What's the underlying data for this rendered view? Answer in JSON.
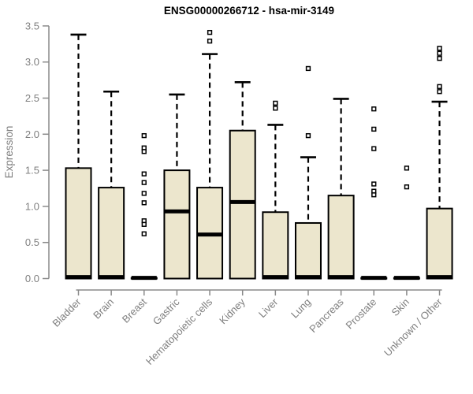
{
  "chart_data": {
    "type": "boxplot",
    "title": "ENSG00000266712 - hsa-mir-3149",
    "xlabel": "",
    "ylabel": "Expression",
    "ylim": [
      0.0,
      3.5
    ],
    "ytick_labels": [
      "0.0",
      "0.5",
      "1.0",
      "1.5",
      "2.0",
      "2.5",
      "3.0",
      "3.5"
    ],
    "grid": false,
    "legend": "none",
    "categories": [
      "Bladder",
      "Brain",
      "Breast",
      "Gastric",
      "Hematopoietic cells",
      "Kidney",
      "Liver",
      "Lung",
      "Pancreas",
      "Prostate",
      "Skin",
      "Unknown / Other"
    ],
    "boxes": [
      {
        "category": "Bladder",
        "q1": 0,
        "median": 0.02,
        "q3": 1.53,
        "whisker_low": 0,
        "whisker_high": 3.38,
        "outliers": []
      },
      {
        "category": "Brain",
        "q1": 0,
        "median": 0.02,
        "q3": 1.26,
        "whisker_low": 0,
        "whisker_high": 2.59,
        "outliers": []
      },
      {
        "category": "Breast",
        "q1": 0,
        "median": 0.01,
        "q3": 0.01,
        "whisker_low": 0,
        "whisker_high": 0.01,
        "outliers": [
          1.98,
          1.81,
          1.76,
          1.45,
          1.33,
          1.18,
          1.05,
          0.8,
          0.75,
          0.62
        ]
      },
      {
        "category": "Gastric",
        "q1": 0,
        "median": 0.93,
        "q3": 1.5,
        "whisker_low": 0,
        "whisker_high": 2.55,
        "outliers": []
      },
      {
        "category": "Hematopoietic cells",
        "q1": 0,
        "median": 0.61,
        "q3": 1.26,
        "whisker_low": 0,
        "whisker_high": 3.11,
        "outliers": [
          3.41,
          3.29
        ]
      },
      {
        "category": "Kidney",
        "q1": 0,
        "median": 1.06,
        "q3": 2.05,
        "whisker_low": 0,
        "whisker_high": 2.72,
        "outliers": []
      },
      {
        "category": "Liver",
        "q1": 0,
        "median": 0.02,
        "q3": 0.92,
        "whisker_low": 0,
        "whisker_high": 2.13,
        "outliers": [
          2.43,
          2.36
        ]
      },
      {
        "category": "Lung",
        "q1": 0,
        "median": 0.02,
        "q3": 0.77,
        "whisker_low": 0,
        "whisker_high": 1.68,
        "outliers": [
          2.91,
          1.98
        ]
      },
      {
        "category": "Pancreas",
        "q1": 0,
        "median": 0.02,
        "q3": 1.15,
        "whisker_low": 0,
        "whisker_high": 2.49,
        "outliers": []
      },
      {
        "category": "Prostate",
        "q1": 0,
        "median": 0.01,
        "q3": 0.01,
        "whisker_low": 0,
        "whisker_high": 0.01,
        "outliers": [
          2.35,
          2.07,
          1.8,
          1.31,
          1.21,
          1.16
        ]
      },
      {
        "category": "Skin",
        "q1": 0,
        "median": 0.01,
        "q3": 0.01,
        "whisker_low": 0,
        "whisker_high": 0.01,
        "outliers": [
          1.53,
          1.27
        ]
      },
      {
        "category": "Unknown / Other",
        "q1": 0,
        "median": 0.02,
        "q3": 0.97,
        "whisker_low": 0,
        "whisker_high": 2.45,
        "outliers": [
          3.19,
          3.12,
          3.05,
          2.66,
          2.59
        ]
      }
    ],
    "colors": {
      "box_fill": "#ECE6CD",
      "box_stroke": "#000000",
      "median": "#000000",
      "whisker": "#000000",
      "outlier_stroke": "#000000",
      "outlier_fill": "#ffffff",
      "axis_line": "#8a8a8a",
      "tick_label": "#7f7f7f",
      "title": "#000000",
      "background": "#ffffff"
    }
  }
}
